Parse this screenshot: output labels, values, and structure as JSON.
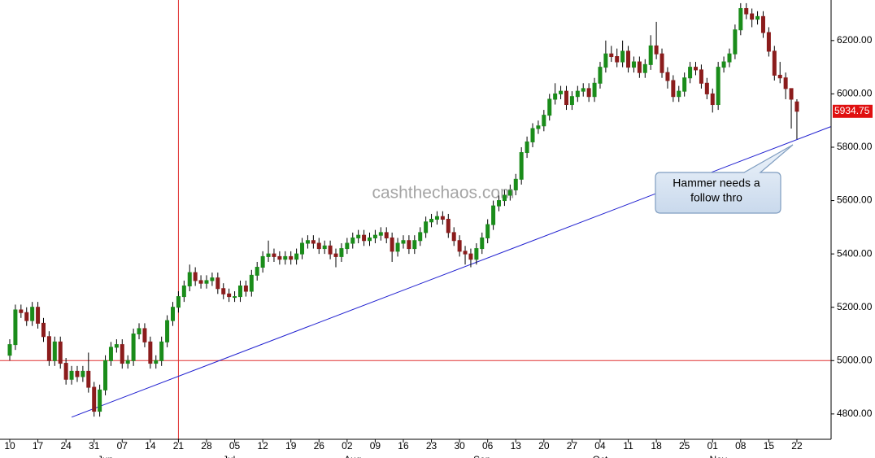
{
  "chart_data": {
    "type": "candlestick",
    "categories": [
      "10",
      null,
      null,
      null,
      null,
      "17",
      null,
      null,
      null,
      null,
      "24",
      null,
      null,
      null,
      null,
      "31",
      null,
      null,
      null,
      null,
      "07",
      null,
      null,
      null,
      null,
      "14",
      null,
      null,
      null,
      null,
      "21",
      null,
      null,
      null,
      null,
      "28",
      null,
      null,
      null,
      null,
      "05",
      null,
      null,
      null,
      null,
      "12",
      null,
      null,
      null,
      null,
      "19",
      null,
      null,
      null,
      null,
      "26",
      null,
      null,
      null,
      null,
      "02",
      null,
      null,
      null,
      null,
      "09",
      null,
      null,
      null,
      null,
      "16",
      null,
      null,
      null,
      null,
      "23",
      null,
      null,
      null,
      null,
      "30",
      null,
      null,
      null,
      null,
      "06",
      null,
      null,
      null,
      null,
      "13",
      null,
      null,
      null,
      null,
      "20",
      null,
      null,
      null,
      null,
      "27",
      null,
      null,
      null,
      null,
      "04",
      null,
      null,
      null,
      null,
      "11",
      null,
      null,
      null,
      null,
      "18",
      null,
      null,
      null,
      null,
      "25",
      null,
      null,
      null,
      null,
      "01",
      null,
      null,
      null,
      null,
      "08",
      null,
      null,
      null,
      null,
      "15",
      null,
      null,
      null,
      null,
      "22"
    ],
    "months": [
      {
        "label": "Jun",
        "at": 17
      },
      {
        "label": "Jul",
        "at": 39
      },
      {
        "label": "Aug",
        "at": 61
      },
      {
        "label": "Sep",
        "at": 84
      },
      {
        "label": "Oct",
        "at": 105
      },
      {
        "label": "Nov",
        "at": 126
      }
    ],
    "open": [
      5020,
      5060,
      5190,
      5180,
      5150,
      5200,
      5140,
      5090,
      5000,
      5070,
      4990,
      4930,
      4960,
      4940,
      4960,
      4900,
      4810,
      4890,
      5000,
      5050,
      5060,
      4990,
      5000,
      5100,
      5120,
      5070,
      4990,
      5000,
      5070,
      5150,
      5200,
      5240,
      5280,
      5330,
      5300,
      5290,
      5300,
      5310,
      5270,
      5250,
      5240,
      5240,
      5280,
      5260,
      5320,
      5350,
      5390,
      5400,
      5390,
      5380,
      5390,
      5380,
      5400,
      5440,
      5450,
      5440,
      5420,
      5430,
      5400,
      5390,
      5420,
      5440,
      5460,
      5470,
      5450,
      5460,
      5470,
      5480,
      5460,
      5410,
      5440,
      5450,
      5420,
      5450,
      5480,
      5520,
      5530,
      5540,
      5530,
      5480,
      5450,
      5410,
      5400,
      5380,
      5420,
      5460,
      5510,
      5580,
      5600,
      5620,
      5640,
      5680,
      5780,
      5820,
      5870,
      5880,
      5920,
      5980,
      6000,
      6010,
      5960,
      5990,
      6010,
      6020,
      5990,
      6040,
      6100,
      6150,
      6140,
      6120,
      6160,
      6100,
      6120,
      6080,
      6110,
      6180,
      6150,
      6080,
      6050,
      5990,
      6010,
      6060,
      6100,
      6090,
      6040,
      6000,
      5960,
      6100,
      6120,
      6150,
      6240,
      6320,
      6300,
      6280,
      6290,
      6230,
      6160,
      6070,
      6060,
      6020,
      5970
    ],
    "high": [
      5080,
      5210,
      5210,
      5200,
      5220,
      5220,
      5160,
      5110,
      5090,
      5090,
      5010,
      4980,
      4980,
      4980,
      5030,
      4920,
      4910,
      5020,
      5070,
      5080,
      5080,
      5020,
      5120,
      5140,
      5140,
      5090,
      5020,
      5090,
      5170,
      5220,
      5260,
      5300,
      5360,
      5350,
      5320,
      5320,
      5330,
      5330,
      5290,
      5270,
      5260,
      5300,
      5300,
      5340,
      5370,
      5410,
      5450,
      5420,
      5410,
      5410,
      5410,
      5420,
      5460,
      5470,
      5470,
      5460,
      5450,
      5450,
      5420,
      5440,
      5460,
      5480,
      5490,
      5490,
      5480,
      5490,
      5500,
      5500,
      5480,
      5460,
      5470,
      5470,
      5470,
      5500,
      5540,
      5550,
      5560,
      5560,
      5550,
      5500,
      5470,
      5430,
      5420,
      5440,
      5480,
      5530,
      5600,
      5620,
      5640,
      5660,
      5700,
      5800,
      5840,
      5890,
      5900,
      5940,
      6000,
      6040,
      6030,
      6030,
      6010,
      6030,
      6040,
      6040,
      6060,
      6120,
      6200,
      6180,
      6170,
      6200,
      6180,
      6140,
      6140,
      6130,
      6220,
      6270,
      6170,
      6100,
      6070,
      6030,
      6080,
      6120,
      6120,
      6110,
      6060,
      6020,
      6120,
      6140,
      6170,
      6260,
      6340,
      6340,
      6320,
      6310,
      6310,
      6250,
      6180,
      6120,
      6080,
      6020,
      5980
    ],
    "low": [
      5000,
      5040,
      5160,
      5130,
      5130,
      5120,
      5070,
      4980,
      4980,
      4970,
      4910,
      4910,
      4920,
      4920,
      4880,
      4790,
      4790,
      4870,
      4980,
      5030,
      4970,
      4970,
      4980,
      5080,
      5050,
      4970,
      4970,
      4980,
      5050,
      5130,
      5180,
      5220,
      5260,
      5280,
      5270,
      5270,
      5280,
      5250,
      5230,
      5220,
      5220,
      5220,
      5240,
      5240,
      5300,
      5330,
      5370,
      5370,
      5360,
      5360,
      5360,
      5360,
      5380,
      5420,
      5420,
      5400,
      5400,
      5380,
      5350,
      5370,
      5400,
      5420,
      5440,
      5430,
      5430,
      5440,
      5450,
      5440,
      5370,
      5390,
      5420,
      5400,
      5400,
      5430,
      5460,
      5500,
      5510,
      5510,
      5460,
      5430,
      5390,
      5360,
      5350,
      5360,
      5400,
      5440,
      5490,
      5560,
      5580,
      5600,
      5620,
      5660,
      5760,
      5800,
      5850,
      5860,
      5900,
      5960,
      5980,
      5940,
      5940,
      5970,
      5990,
      5970,
      5970,
      6020,
      6080,
      6120,
      6100,
      6100,
      6080,
      6080,
      6060,
      6060,
      6090,
      6130,
      6060,
      6020,
      5970,
      5970,
      5990,
      6040,
      6070,
      6020,
      5980,
      5930,
      5940,
      6080,
      6100,
      6130,
      6220,
      6280,
      6250,
      6260,
      6210,
      6140,
      6050,
      6040,
      5980,
      5870,
      5830
    ],
    "close": [
      5060,
      5190,
      5180,
      5150,
      5200,
      5140,
      5090,
      5000,
      5070,
      4990,
      4930,
      4960,
      4940,
      4960,
      4900,
      4810,
      4890,
      5000,
      5050,
      5060,
      4990,
      5000,
      5100,
      5120,
      5070,
      4990,
      5000,
      5070,
      5150,
      5200,
      5240,
      5280,
      5330,
      5300,
      5290,
      5300,
      5310,
      5270,
      5250,
      5240,
      5240,
      5280,
      5260,
      5320,
      5350,
      5390,
      5400,
      5390,
      5380,
      5390,
      5380,
      5400,
      5440,
      5450,
      5440,
      5420,
      5430,
      5400,
      5390,
      5420,
      5440,
      5460,
      5470,
      5450,
      5460,
      5470,
      5480,
      5460,
      5410,
      5440,
      5450,
      5420,
      5450,
      5480,
      5520,
      5530,
      5540,
      5530,
      5480,
      5450,
      5410,
      5400,
      5380,
      5420,
      5460,
      5510,
      5580,
      5600,
      5620,
      5640,
      5680,
      5780,
      5820,
      5870,
      5880,
      5920,
      5980,
      6000,
      6010,
      5960,
      5990,
      6010,
      6020,
      5990,
      6040,
      6100,
      6150,
      6140,
      6120,
      6160,
      6100,
      6120,
      6080,
      6110,
      6180,
      6150,
      6080,
      6050,
      5990,
      6010,
      6060,
      6100,
      6090,
      6040,
      6000,
      5960,
      6100,
      6120,
      6150,
      6240,
      6320,
      6300,
      6280,
      6290,
      6230,
      6160,
      6070,
      6060,
      6020,
      5980,
      5934.75
    ],
    "up_color": "#1a8c1a",
    "down_color": "#8b1c1c",
    "ylim": [
      4705,
      6352
    ],
    "yticks": [
      {
        "value": 4800,
        "label": "4800.00"
      },
      {
        "value": 5000,
        "label": "5000.00"
      },
      {
        "value": 5200,
        "label": "5200.00"
      },
      {
        "value": 5400,
        "label": "5400.00"
      },
      {
        "value": 5600,
        "label": "5600.00"
      },
      {
        "value": 5800,
        "label": "5800.00"
      },
      {
        "value": 6000,
        "label": "6000.00"
      },
      {
        "value": 6200,
        "label": "6200.00"
      }
    ],
    "hlines": [
      {
        "value": 5000,
        "color": "#e03030"
      }
    ],
    "vlines": [
      {
        "at": 30,
        "color": "#e03030"
      }
    ],
    "trendline": {
      "from": [
        11,
        4788
      ],
      "to": [
        146,
        5877
      ],
      "color": "#2020d0"
    },
    "last_price_color": "#e01010",
    "watermark": "cashthechaos.com",
    "annotation": {
      "lines": [
        "Hammer needs a",
        "follow thro"
      ]
    }
  }
}
